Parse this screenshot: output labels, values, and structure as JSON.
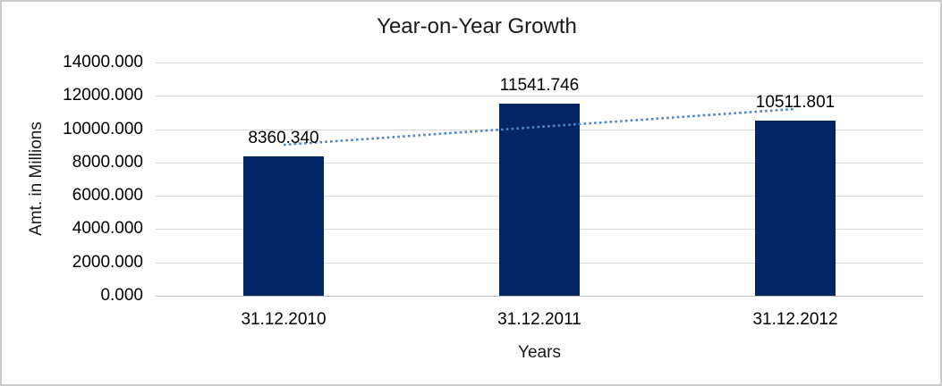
{
  "chart_data": {
    "type": "bar",
    "title": "Year-on-Year Growth",
    "xlabel": "Years",
    "ylabel": "Amt. in Millions",
    "categories": [
      "31.12.2010",
      "31.12.2011",
      "31.12.2012"
    ],
    "values": [
      8360.34,
      11541.746,
      10511.801
    ],
    "value_labels": [
      "8360.340",
      "11541.746",
      "10511.801"
    ],
    "ylim": [
      0,
      14000
    ],
    "ytick_step": 2000,
    "ytick_labels": [
      "0.000",
      "2000.000",
      "4000.000",
      "6000.000",
      "8000.000",
      "10000.000",
      "12000.000",
      "14000.000"
    ],
    "grid": true,
    "legend": "none",
    "trendline": {
      "show": true,
      "style": "dotted",
      "fit": "linear"
    },
    "colors": {
      "bar": "#032565",
      "trendline": "#4e86c8",
      "gridline": "#d9d9d9",
      "zero_line": "#bfbfbf",
      "frame_border": "#cbcbcb",
      "text": "#1a1a1a",
      "background": "#ffffff"
    }
  }
}
